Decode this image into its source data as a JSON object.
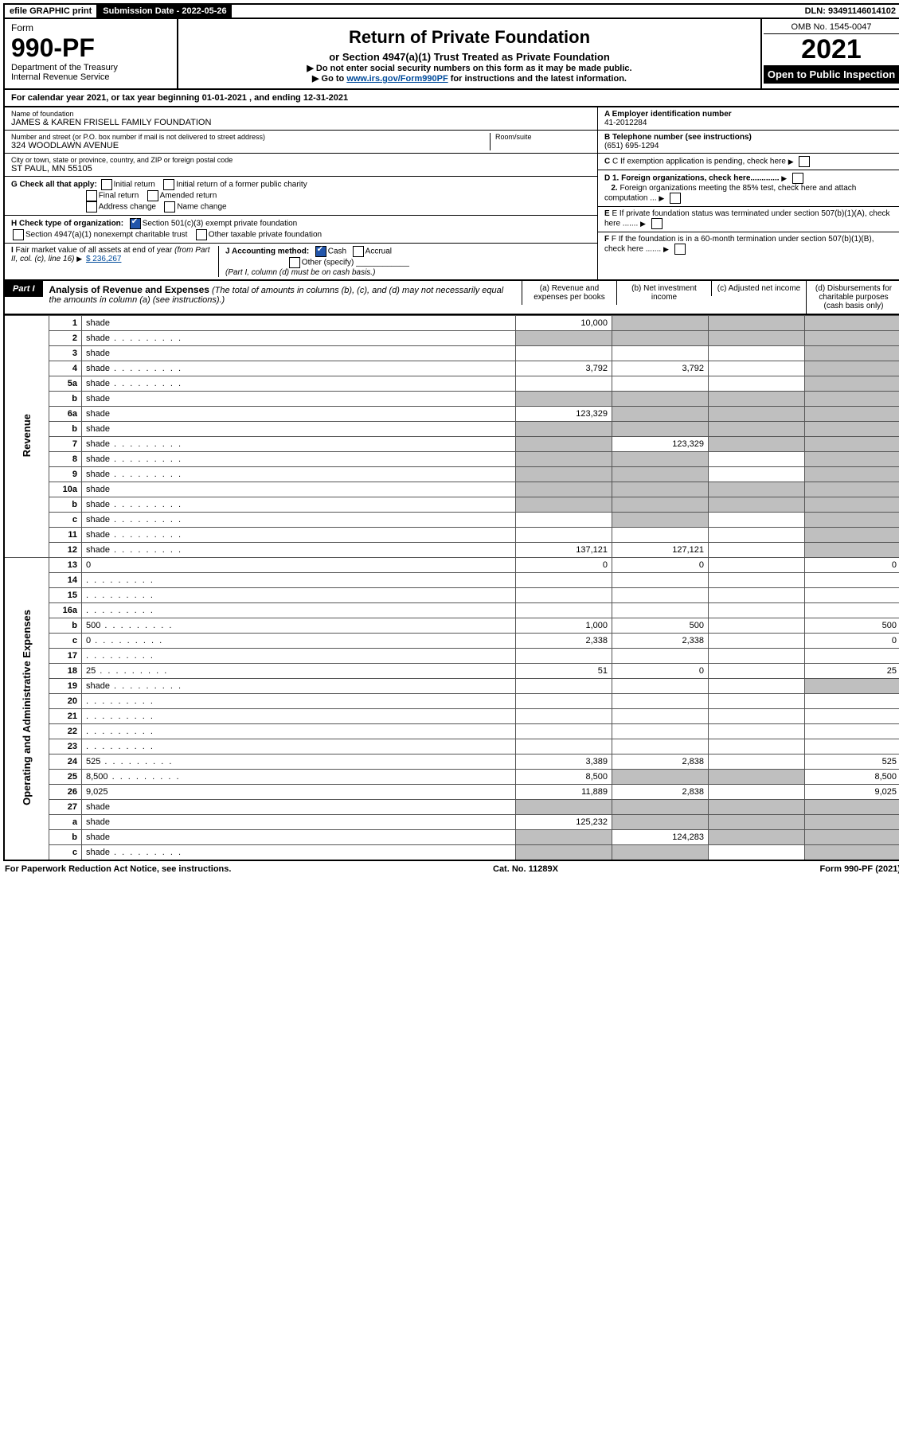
{
  "topbar": {
    "efile": "efile GRAPHIC print",
    "subdate_label": "Submission Date",
    "subdate_value": "2022-05-26",
    "dln_label": "DLN:",
    "dln_value": "93491146014102"
  },
  "header": {
    "form_label": "Form",
    "form_number": "990-PF",
    "dept1": "Department of the Treasury",
    "dept2": "Internal Revenue Service",
    "title": "Return of Private Foundation",
    "subtitle": "or Section 4947(a)(1) Trust Treated as Private Foundation",
    "note1": "▶ Do not enter social security numbers on this form as it may be made public.",
    "note2_pre": "▶ Go to ",
    "note2_link": "www.irs.gov/Form990PF",
    "note2_post": " for instructions and the latest information.",
    "omb": "OMB No. 1545-0047",
    "year": "2021",
    "open": "Open to Public Inspection"
  },
  "calyear": {
    "text_pre": "For calendar year 2021, or tax year beginning ",
    "begin": "01-01-2021",
    "mid": " , and ending ",
    "end": "12-31-2021"
  },
  "info": {
    "name_label": "Name of foundation",
    "name": "JAMES & KAREN FRISELL FAMILY FOUNDATION",
    "addr_label": "Number and street (or P.O. box number if mail is not delivered to street address)",
    "addr": "324 WOODLAWN AVENUE",
    "room_label": "Room/suite",
    "city_label": "City or town, state or province, country, and ZIP or foreign postal code",
    "city": "ST PAUL, MN  55105",
    "ein_label": "A Employer identification number",
    "ein": "41-2012284",
    "phone_label": "B Telephone number (see instructions)",
    "phone": "(651) 695-1294",
    "c_label": "C If exemption application is pending, check here",
    "g_label": "G Check all that apply:",
    "g_opts": [
      "Initial return",
      "Initial return of a former public charity",
      "Final return",
      "Amended return",
      "Address change",
      "Name change"
    ],
    "d1": "D 1. Foreign organizations, check here.............",
    "d2": "2. Foreign organizations meeting the 85% test, check here and attach computation ...",
    "h_label": "H Check type of organization:",
    "h1": "Section 501(c)(3) exempt private foundation",
    "h2": "Section 4947(a)(1) nonexempt charitable trust",
    "h3": "Other taxable private foundation",
    "e_label": "E If private foundation status was terminated under section 507(b)(1)(A), check here .......",
    "i_label": "I Fair market value of all assets at end of year (from Part II, col. (c), line 16) ▶",
    "i_value": "$  236,267",
    "j_label": "J Accounting method:",
    "j_cash": "Cash",
    "j_accrual": "Accrual",
    "j_other": "Other (specify)",
    "j_note": "(Part I, column (d) must be on cash basis.)",
    "f_label": "F If the foundation is in a 60-month termination under section 507(b)(1)(B), check here ......."
  },
  "part1": {
    "badge": "Part I",
    "title": "Analysis of Revenue and Expenses",
    "title_note": " (The total of amounts in columns (b), (c), and (d) may not necessarily equal the amounts in column (a) (see instructions).)",
    "col_a": "(a)  Revenue and expenses per books",
    "col_b": "(b)  Net investment income",
    "col_c": "(c)  Adjusted net income",
    "col_d": "(d)  Disbursements for charitable purposes (cash basis only)"
  },
  "sides": {
    "revenue": "Revenue",
    "expenses": "Operating and Administrative Expenses"
  },
  "rows": [
    {
      "n": "1",
      "d": "shade",
      "a": "10,000",
      "b": "shade",
      "c": "shade"
    },
    {
      "n": "2",
      "d": "shade",
      "dots": true,
      "a": "shade",
      "b": "shade",
      "c": "shade"
    },
    {
      "n": "3",
      "d": "shade",
      "a": "",
      "b": "",
      "c": ""
    },
    {
      "n": "4",
      "d": "shade",
      "dots": true,
      "a": "3,792",
      "b": "3,792",
      "c": ""
    },
    {
      "n": "5a",
      "d": "shade",
      "dots": true,
      "a": "",
      "b": "",
      "c": ""
    },
    {
      "n": "b",
      "d": "shade",
      "a": "shade",
      "b": "shade",
      "c": "shade"
    },
    {
      "n": "6a",
      "d": "shade",
      "a": "123,329",
      "b": "shade",
      "c": "shade"
    },
    {
      "n": "b",
      "d": "shade",
      "a": "shade",
      "b": "shade",
      "c": "shade"
    },
    {
      "n": "7",
      "d": "shade",
      "dots": true,
      "a": "shade",
      "b": "123,329",
      "c": "shade"
    },
    {
      "n": "8",
      "d": "shade",
      "dots": true,
      "a": "shade",
      "b": "shade",
      "c": ""
    },
    {
      "n": "9",
      "d": "shade",
      "dots": true,
      "a": "shade",
      "b": "shade",
      "c": ""
    },
    {
      "n": "10a",
      "d": "shade",
      "a": "shade",
      "b": "shade",
      "c": "shade"
    },
    {
      "n": "b",
      "d": "shade",
      "dots": true,
      "a": "shade",
      "b": "shade",
      "c": "shade"
    },
    {
      "n": "c",
      "d": "shade",
      "dots": true,
      "a": "",
      "b": "shade",
      "c": ""
    },
    {
      "n": "11",
      "d": "shade",
      "dots": true,
      "a": "",
      "b": "",
      "c": ""
    },
    {
      "n": "12",
      "d": "shade",
      "dots": true,
      "a": "137,121",
      "b": "127,121",
      "c": ""
    },
    {
      "n": "13",
      "d": "0",
      "a": "0",
      "b": "0",
      "c": ""
    },
    {
      "n": "14",
      "d": "",
      "dots": true,
      "a": "",
      "b": "",
      "c": ""
    },
    {
      "n": "15",
      "d": "",
      "dots": true,
      "a": "",
      "b": "",
      "c": ""
    },
    {
      "n": "16a",
      "d": "",
      "dots": true,
      "a": "",
      "b": "",
      "c": ""
    },
    {
      "n": "b",
      "d": "500",
      "dots": true,
      "a": "1,000",
      "b": "500",
      "c": ""
    },
    {
      "n": "c",
      "d": "0",
      "dots": true,
      "a": "2,338",
      "b": "2,338",
      "c": ""
    },
    {
      "n": "17",
      "d": "",
      "dots": true,
      "a": "",
      "b": "",
      "c": ""
    },
    {
      "n": "18",
      "d": "25",
      "dots": true,
      "a": "51",
      "b": "0",
      "c": ""
    },
    {
      "n": "19",
      "d": "shade",
      "dots": true,
      "a": "",
      "b": "",
      "c": ""
    },
    {
      "n": "20",
      "d": "",
      "dots": true,
      "a": "",
      "b": "",
      "c": ""
    },
    {
      "n": "21",
      "d": "",
      "dots": true,
      "a": "",
      "b": "",
      "c": ""
    },
    {
      "n": "22",
      "d": "",
      "dots": true,
      "a": "",
      "b": "",
      "c": ""
    },
    {
      "n": "23",
      "d": "",
      "dots": true,
      "a": "",
      "b": "",
      "c": ""
    },
    {
      "n": "24",
      "d": "525",
      "dots": true,
      "a": "3,389",
      "b": "2,838",
      "c": ""
    },
    {
      "n": "25",
      "d": "8,500",
      "dots": true,
      "a": "8,500",
      "b": "shade",
      "c": "shade"
    },
    {
      "n": "26",
      "d": "9,025",
      "a": "11,889",
      "b": "2,838",
      "c": ""
    },
    {
      "n": "27",
      "d": "shade",
      "a": "shade",
      "b": "shade",
      "c": "shade"
    },
    {
      "n": "a",
      "d": "shade",
      "a": "125,232",
      "b": "shade",
      "c": "shade"
    },
    {
      "n": "b",
      "d": "shade",
      "a": "shade",
      "b": "124,283",
      "c": "shade"
    },
    {
      "n": "c",
      "d": "shade",
      "dots": true,
      "a": "shade",
      "b": "shade",
      "c": ""
    }
  ],
  "footer": {
    "left": "For Paperwork Reduction Act Notice, see instructions.",
    "mid": "Cat. No. 11289X",
    "right": "Form 990-PF (2021)"
  }
}
